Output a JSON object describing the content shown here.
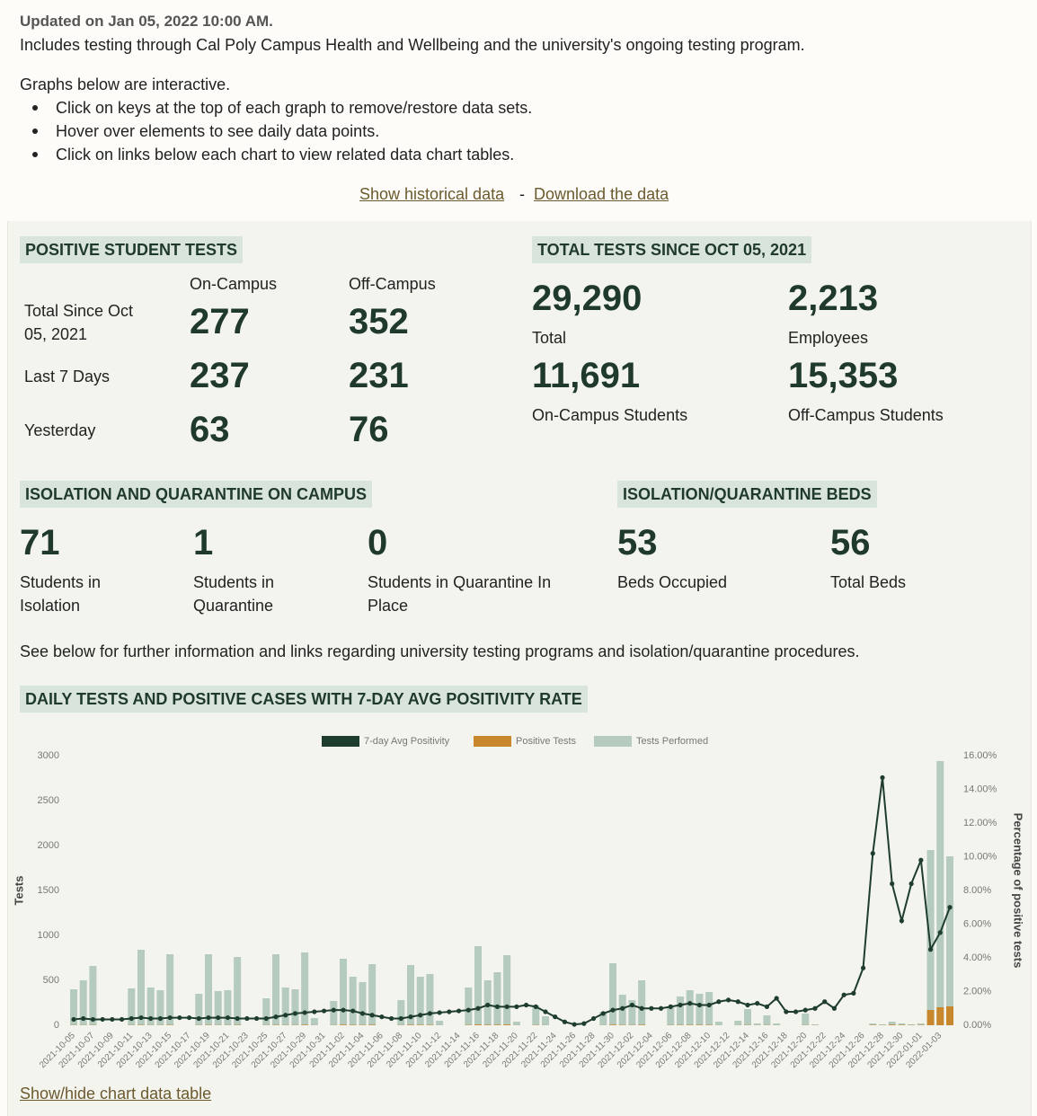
{
  "header": {
    "updated": "Updated on Jan 05, 2022 10:00 AM.",
    "includes": "Includes testing through Cal Poly Campus Health and Wellbeing and the university's ongoing testing program.",
    "interactive": "Graphs below are interactive.",
    "bullets": [
      "Click on keys at the top of each graph to remove/restore data sets.",
      "Hover over elements to see daily data points.",
      "Click on links below each chart to view related data chart tables."
    ],
    "links": [
      "Show historical data",
      "Download the data"
    ],
    "separator": "-"
  },
  "positive_tests": {
    "title": "POSITIVE STUDENT TESTS",
    "columns": [
      "On-Campus",
      "Off-Campus"
    ],
    "rows": [
      {
        "label": "Total Since Oct 05, 2021",
        "values": [
          "277",
          "352"
        ]
      },
      {
        "label": "Last 7 Days",
        "values": [
          "237",
          "231"
        ]
      },
      {
        "label": "Yesterday",
        "values": [
          "63",
          "76"
        ]
      }
    ]
  },
  "total_tests": {
    "title": "TOTAL TESTS SINCE OCT 05, 2021",
    "items": [
      {
        "value": "29,290",
        "label": "Total"
      },
      {
        "value": "2,213",
        "label": "Employees"
      },
      {
        "value": "11,691",
        "label": "On-Campus Students"
      },
      {
        "value": "15,353",
        "label": "Off-Campus Students"
      }
    ]
  },
  "isolation": {
    "title": "ISOLATION AND QUARANTINE ON CAMPUS",
    "items": [
      {
        "value": "71",
        "label": "Students in Isolation"
      },
      {
        "value": "1",
        "label": "Students in Quarantine"
      },
      {
        "value": "0",
        "label": "Students in Quarantine In Place"
      }
    ]
  },
  "beds": {
    "title": "ISOLATION/QUARANTINE BEDS",
    "items": [
      {
        "value": "53",
        "label": "Beds Occupied"
      },
      {
        "value": "56",
        "label": "Total Beds"
      }
    ]
  },
  "note": "See below for further information and links regarding university testing programs and isolation/quarantine procedures.",
  "chart_link": "Show/hide chart data table",
  "chart_data": {
    "type": "bar",
    "title": "DAILY TESTS AND POSITIVE CASES WITH 7-DAY AVG POSITIVITY RATE",
    "ylabel": "Tests",
    "y2label": "Percentage of positive tests",
    "categories": [
      "2021-10-05",
      null,
      "2021-10-07",
      null,
      "2021-10-09",
      null,
      "2021-10-11",
      null,
      "2021-10-13",
      null,
      "2021-10-15",
      null,
      "2021-10-17",
      null,
      "2021-10-19",
      null,
      "2021-10-21",
      null,
      "2021-10-23",
      null,
      "2021-10-25",
      null,
      "2021-10-27",
      null,
      "2021-10-29",
      null,
      "2021-10-31",
      null,
      "2021-11-02",
      null,
      "2021-11-04",
      null,
      "2021-11-06",
      null,
      "2021-11-08",
      null,
      "2021-11-10",
      null,
      "2021-11-12",
      null,
      "2021-11-14",
      null,
      "2021-11-16",
      null,
      "2021-11-18",
      null,
      "2021-11-20",
      null,
      "2021-11-22",
      null,
      "2021-11-24",
      null,
      "2021-11-26",
      null,
      "2021-11-28",
      null,
      "2021-11-30",
      null,
      "2021-12-02",
      null,
      "2021-12-04",
      null,
      "2021-12-06",
      null,
      "2021-12-08",
      null,
      "2021-12-10",
      null,
      "2021-12-12",
      null,
      "2021-12-14",
      null,
      "2021-12-16",
      null,
      "2021-12-18",
      null,
      "2021-12-20",
      null,
      "2021-12-22",
      null,
      "2021-12-24",
      null,
      "2021-12-26",
      null,
      "2021-12-28",
      null,
      "2021-12-30",
      null,
      "2022-01-01",
      null,
      "2022-01-03",
      null
    ],
    "series": [
      {
        "name": "7-day Avg Positivity",
        "type": "line",
        "axis": "y2",
        "color": "#1e3d2f",
        "values": [
          0.35,
          0.4,
          0.35,
          0.35,
          0.35,
          0.35,
          0.4,
          0.45,
          0.4,
          0.4,
          0.45,
          0.45,
          0.45,
          0.4,
          0.45,
          0.45,
          0.45,
          0.4,
          0.4,
          0.4,
          0.4,
          0.5,
          0.6,
          0.7,
          0.75,
          0.8,
          0.85,
          0.9,
          0.9,
          0.85,
          0.7,
          0.6,
          0.5,
          0.4,
          0.4,
          0.5,
          0.6,
          0.7,
          0.75,
          0.8,
          0.85,
          0.9,
          1.0,
          1.2,
          1.1,
          1.1,
          1.1,
          1.2,
          1.1,
          0.8,
          0.5,
          0.2,
          0.05,
          0.1,
          0.4,
          0.7,
          0.9,
          1.0,
          1.2,
          1.0,
          1.0,
          1.0,
          1.1,
          1.2,
          1.3,
          1.2,
          1.2,
          1.4,
          1.5,
          1.4,
          1.2,
          1.3,
          1.1,
          1.6,
          0.8,
          0.8,
          0.9,
          1.0,
          1.4,
          1.0,
          1.8,
          1.9,
          3.4,
          10.2,
          14.7,
          8.4,
          6.2,
          8.4,
          9.8,
          4.5,
          5.5,
          7.0
        ]
      },
      {
        "name": "Positive Tests",
        "type": "bar",
        "color": "#c8872d",
        "values": [
          2,
          2,
          3,
          0,
          0,
          0,
          2,
          4,
          2,
          2,
          4,
          0,
          0,
          2,
          4,
          2,
          2,
          4,
          0,
          0,
          2,
          4,
          3,
          3,
          6,
          1,
          0,
          2,
          7,
          5,
          4,
          6,
          0,
          0,
          2,
          6,
          5,
          5,
          1,
          0,
          0,
          4,
          9,
          6,
          7,
          9,
          1,
          0,
          3,
          1,
          0,
          0,
          0,
          0,
          0,
          1,
          7,
          4,
          3,
          6,
          0,
          0,
          3,
          4,
          5,
          5,
          5,
          1,
          0,
          1,
          3,
          1,
          2,
          1,
          0,
          0,
          2,
          1,
          0,
          0,
          0,
          0,
          0,
          4,
          2,
          8,
          5,
          3,
          4,
          170,
          200,
          210
        ]
      },
      {
        "name": "Tests Performed",
        "type": "bar",
        "color": "#b5cbbf",
        "values": [
          400,
          500,
          660,
          0,
          0,
          0,
          410,
          840,
          420,
          390,
          790,
          0,
          0,
          350,
          790,
          380,
          390,
          760,
          0,
          0,
          300,
          790,
          420,
          400,
          810,
          80,
          0,
          270,
          740,
          540,
          480,
          680,
          0,
          0,
          280,
          670,
          540,
          570,
          50,
          0,
          0,
          420,
          880,
          500,
          590,
          780,
          40,
          0,
          220,
          100,
          0,
          0,
          0,
          0,
          0,
          150,
          690,
          340,
          280,
          500,
          0,
          0,
          200,
          320,
          390,
          350,
          370,
          40,
          0,
          50,
          180,
          20,
          110,
          20,
          0,
          0,
          130,
          10,
          0,
          0,
          0,
          0,
          0,
          20,
          10,
          40,
          20,
          10,
          20,
          1950,
          2940,
          1880
        ]
      }
    ],
    "ylim": [
      0,
      3000
    ],
    "yticks": [
      0,
      500,
      1000,
      1500,
      2000,
      2500,
      3000
    ],
    "y2lim": [
      0,
      16
    ],
    "y2ticks": [
      {
        "value": 0,
        "label": "0.00%"
      },
      {
        "value": 2,
        "label": "2.00%"
      },
      {
        "value": 4,
        "label": "4.00%"
      },
      {
        "value": 6,
        "label": "6.00%"
      },
      {
        "value": 8,
        "label": "8.00%"
      },
      {
        "value": 10,
        "label": "10.00%"
      },
      {
        "value": 12,
        "label": "12.00%"
      },
      {
        "value": 14,
        "label": "14.00%"
      },
      {
        "value": 16,
        "label": "16.00%"
      }
    ],
    "legend": "top",
    "grid": false
  }
}
